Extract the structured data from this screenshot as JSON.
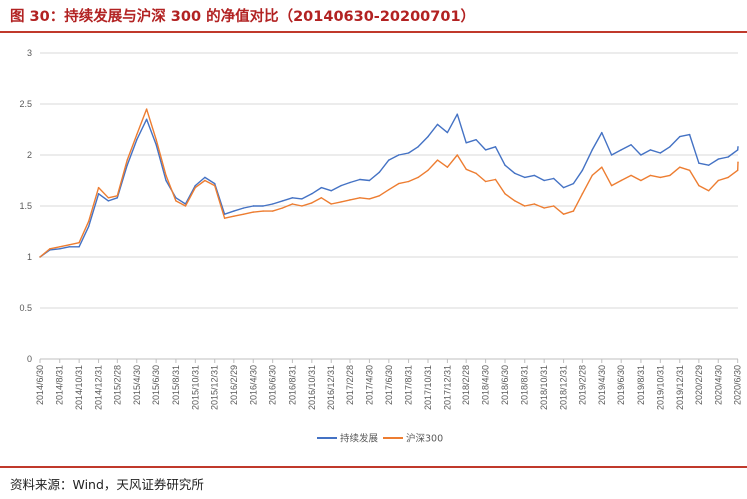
{
  "header": {
    "title": "图 30：持续发展与沪深 300 的净值对比（20140630-20200701）"
  },
  "footer": {
    "source": "资料来源：Wind，天风证券研究所"
  },
  "colors": {
    "accent": "#c0392b",
    "series_blue": "#4472c4",
    "series_orange": "#ed7d31",
    "gridline": "#d9d9d9"
  },
  "chart_data": {
    "type": "line",
    "title": "",
    "xlabel": "",
    "ylabel": "",
    "ylim": [
      0,
      3
    ],
    "yticks": [
      "0",
      "0.5",
      "1",
      "1.5",
      "2",
      "2.5",
      "3"
    ],
    "grid": true,
    "legend_position": "bottom",
    "x_tick_labels": [
      "2014/6/30",
      "2014/8/31",
      "2014/10/31",
      "2014/12/31",
      "2015/2/28",
      "2015/4/30",
      "2015/6/30",
      "2015/8/31",
      "2015/10/31",
      "2015/12/31",
      "2016/2/29",
      "2016/4/30",
      "2016/6/30",
      "2016/8/31",
      "2016/10/31",
      "2016/12/31",
      "2017/2/28",
      "2017/4/30",
      "2017/6/30",
      "2017/8/31",
      "2017/10/31",
      "2017/12/31",
      "2018/2/28",
      "2018/4/30",
      "2018/6/30",
      "2018/8/31",
      "2018/10/31",
      "2018/12/31",
      "2019/2/28",
      "2019/4/30",
      "2019/6/30",
      "2019/8/31",
      "2019/10/31",
      "2019/12/31",
      "2020/2/29",
      "2020/4/30",
      "2020/6/30"
    ],
    "x": [
      "2014/6/30",
      "2014/7/31",
      "2014/8/31",
      "2014/9/30",
      "2014/10/31",
      "2014/11/30",
      "2014/12/31",
      "2015/1/31",
      "2015/2/28",
      "2015/3/31",
      "2015/4/30",
      "2015/5/31",
      "2015/6/30",
      "2015/7/31",
      "2015/8/31",
      "2015/9/30",
      "2015/10/31",
      "2015/11/30",
      "2015/12/31",
      "2016/1/31",
      "2016/2/29",
      "2016/3/31",
      "2016/4/30",
      "2016/5/31",
      "2016/6/30",
      "2016/7/31",
      "2016/8/31",
      "2016/9/30",
      "2016/10/31",
      "2016/11/30",
      "2016/12/31",
      "2017/1/31",
      "2017/2/28",
      "2017/3/31",
      "2017/4/30",
      "2017/5/31",
      "2017/6/30",
      "2017/7/31",
      "2017/8/31",
      "2017/9/30",
      "2017/10/31",
      "2017/11/30",
      "2017/12/31",
      "2018/1/31",
      "2018/2/28",
      "2018/3/31",
      "2018/4/30",
      "2018/5/31",
      "2018/6/30",
      "2018/7/31",
      "2018/8/31",
      "2018/9/30",
      "2018/10/31",
      "2018/11/30",
      "2018/12/31",
      "2019/1/31",
      "2019/2/28",
      "2019/3/31",
      "2019/4/30",
      "2019/5/31",
      "2019/6/30",
      "2019/7/31",
      "2019/8/31",
      "2019/9/30",
      "2019/10/31",
      "2019/11/30",
      "2019/12/31",
      "2020/1/31",
      "2020/2/29",
      "2020/3/31",
      "2020/4/30",
      "2020/5/31",
      "2020/6/30",
      "2020/7/1"
    ],
    "series": [
      {
        "name": "持续发展",
        "color": "#4472c4",
        "values": [
          1.0,
          1.07,
          1.08,
          1.1,
          1.1,
          1.3,
          1.62,
          1.55,
          1.58,
          1.9,
          2.15,
          2.35,
          2.1,
          1.75,
          1.58,
          1.52,
          1.7,
          1.78,
          1.72,
          1.42,
          1.45,
          1.48,
          1.5,
          1.5,
          1.52,
          1.55,
          1.58,
          1.57,
          1.62,
          1.68,
          1.65,
          1.7,
          1.73,
          1.76,
          1.75,
          1.83,
          1.95,
          2.0,
          2.02,
          2.08,
          2.18,
          2.3,
          2.22,
          2.4,
          2.12,
          2.15,
          2.05,
          2.08,
          1.9,
          1.82,
          1.78,
          1.8,
          1.75,
          1.77,
          1.68,
          1.72,
          1.85,
          2.05,
          2.22,
          2.0,
          2.05,
          2.1,
          2.0,
          2.05,
          2.02,
          2.08,
          2.18,
          2.2,
          1.92,
          1.9,
          1.96,
          1.98,
          2.05,
          2.08
        ]
      },
      {
        "name": "沪深300",
        "color": "#ed7d31",
        "values": [
          1.0,
          1.08,
          1.1,
          1.12,
          1.14,
          1.35,
          1.68,
          1.58,
          1.6,
          1.95,
          2.2,
          2.45,
          2.15,
          1.8,
          1.55,
          1.5,
          1.68,
          1.75,
          1.7,
          1.38,
          1.4,
          1.42,
          1.44,
          1.45,
          1.45,
          1.48,
          1.52,
          1.5,
          1.53,
          1.58,
          1.52,
          1.54,
          1.56,
          1.58,
          1.57,
          1.6,
          1.66,
          1.72,
          1.74,
          1.78,
          1.85,
          1.95,
          1.88,
          2.0,
          1.86,
          1.82,
          1.74,
          1.76,
          1.62,
          1.55,
          1.5,
          1.52,
          1.48,
          1.5,
          1.42,
          1.45,
          1.62,
          1.8,
          1.88,
          1.7,
          1.75,
          1.8,
          1.75,
          1.8,
          1.78,
          1.8,
          1.88,
          1.85,
          1.7,
          1.65,
          1.75,
          1.78,
          1.85,
          1.93
        ]
      }
    ]
  }
}
